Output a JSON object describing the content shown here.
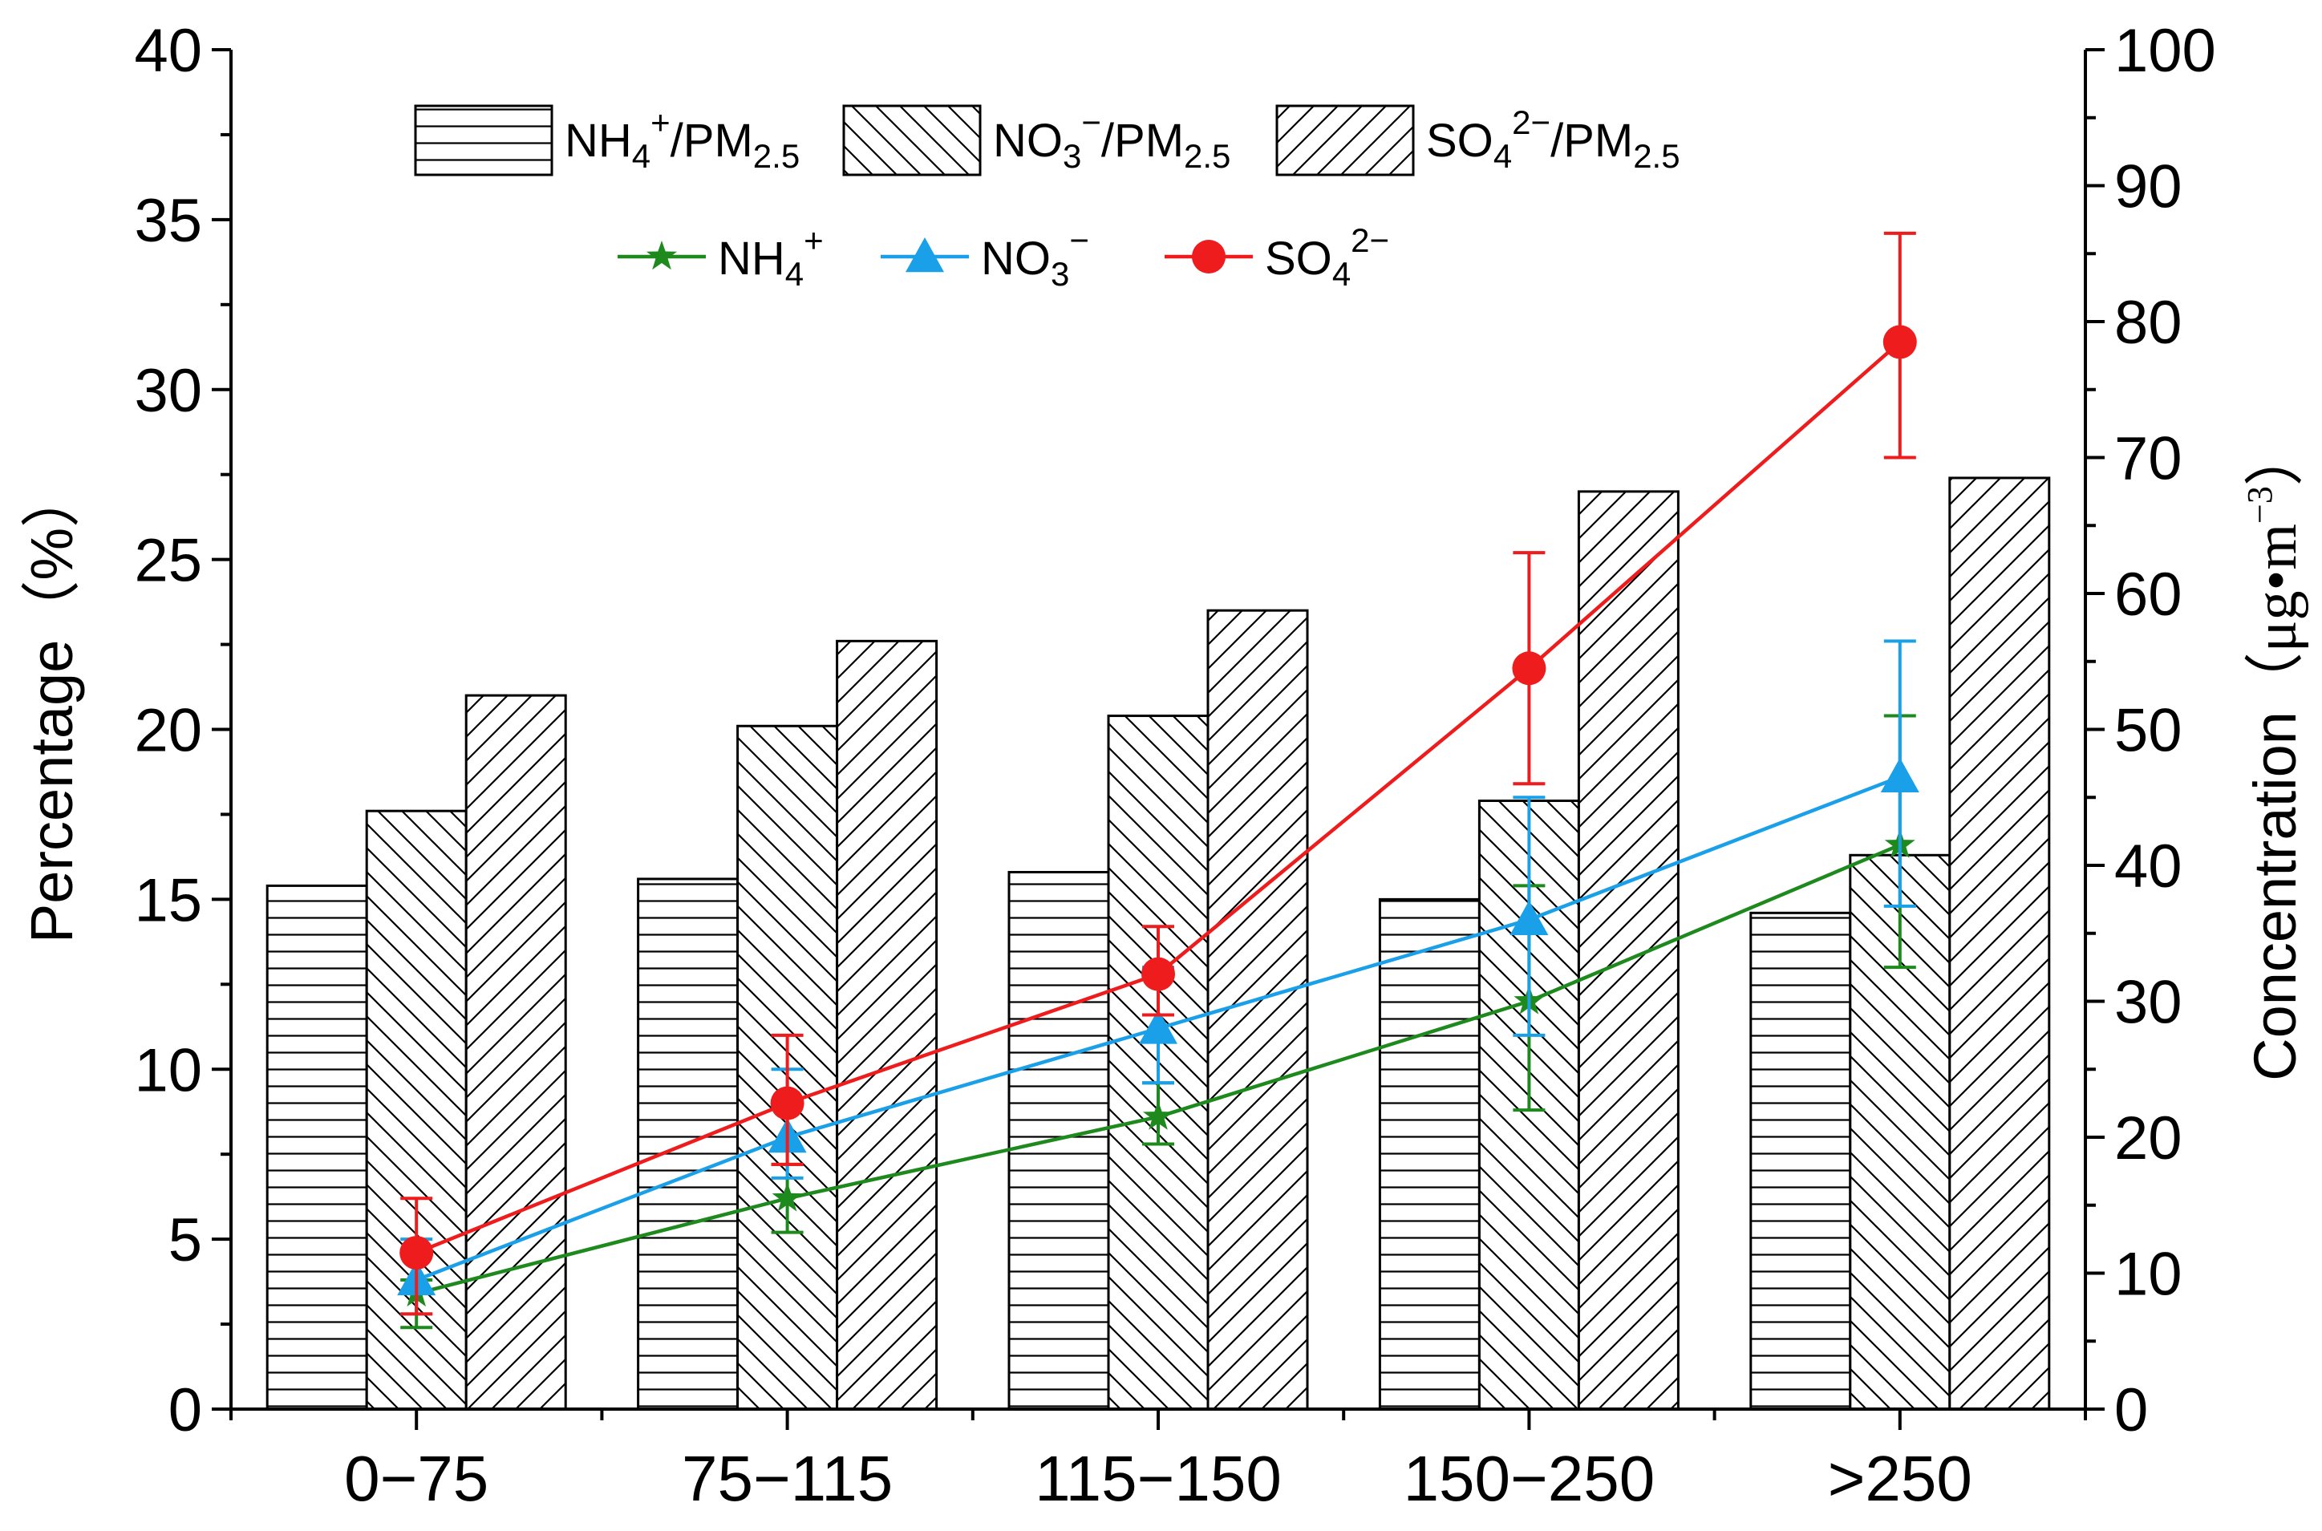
{
  "chart_data": {
    "type": "bar",
    "categories": [
      "0−75",
      "75−115",
      "115−150",
      "150−250",
      ">250"
    ],
    "ylabel_left": "Percentage（%）",
    "ylabel_right_main": "Concentration（",
    "ylabel_right_unit": "μg•m",
    "ylabel_right_exp": "−3",
    "ylabel_right_close": "）",
    "ylim_left": [
      0,
      40
    ],
    "ylim_right": [
      0,
      100
    ],
    "yticks_left": [
      "0",
      "5",
      "10",
      "15",
      "20",
      "25",
      "30",
      "35",
      "40"
    ],
    "yticks_right": [
      "0",
      "10",
      "20",
      "30",
      "40",
      "50",
      "60",
      "70",
      "80",
      "90",
      "100"
    ],
    "bar_series": [
      {
        "name": "NH4+/PM2.5",
        "legend_main": "NH",
        "legend_sub1": "4",
        "legend_sup": "+",
        "legend_tail": "/PM",
        "legend_sub2": "2.5",
        "pattern": "horizontal",
        "axis": "left",
        "values": [
          15.4,
          15.6,
          15.8,
          15.0,
          14.6
        ]
      },
      {
        "name": "NO3−/PM2.5",
        "legend_main": "NO",
        "legend_sub1": "3",
        "legend_sup": "−",
        "legend_tail": "/PM",
        "legend_sub2": "2.5",
        "pattern": "backslash",
        "axis": "left",
        "values": [
          17.6,
          20.1,
          20.4,
          17.9,
          16.3
        ]
      },
      {
        "name": "SO42−/PM2.5",
        "legend_main": "SO",
        "legend_sub1": "4",
        "legend_sup": "2−",
        "legend_tail": "/PM",
        "legend_sub2": "2.5",
        "pattern": "slash",
        "axis": "left",
        "values": [
          21.0,
          22.6,
          23.5,
          27.0,
          27.4
        ]
      }
    ],
    "line_series": [
      {
        "name": "NH4+",
        "legend_main": "NH",
        "legend_sub1": "4",
        "legend_sup": "+",
        "marker": "star",
        "color": "#1e8a1e",
        "axis": "right",
        "values": [
          8.5,
          15.5,
          21.5,
          30.0,
          41.5
        ],
        "err_low": [
          6.0,
          13.0,
          19.5,
          22.0,
          32.5
        ],
        "err_high": [
          9.5,
          18.0,
          24.0,
          38.5,
          51.0
        ]
      },
      {
        "name": "NO3−",
        "legend_main": "NO",
        "legend_sub1": "3",
        "legend_sup": "−",
        "marker": "triangle",
        "color": "#1aa0e8",
        "axis": "right",
        "values": [
          9.5,
          20.0,
          28.0,
          36.0,
          46.5
        ],
        "err_low": [
          7.0,
          17.0,
          24.0,
          27.5,
          37.0
        ],
        "err_high": [
          12.5,
          25.0,
          32.5,
          45.0,
          56.5
        ]
      },
      {
        "name": "SO42−",
        "legend_main": "SO",
        "legend_sub1": "4",
        "legend_sup": "2−",
        "marker": "circle",
        "color": "#ee1c1c",
        "axis": "right",
        "values": [
          11.5,
          22.5,
          32.0,
          54.5,
          78.5
        ],
        "err_low": [
          7.0,
          18.0,
          29.0,
          46.0,
          70.0
        ],
        "err_high": [
          15.5,
          27.5,
          35.5,
          63.0,
          86.5
        ]
      }
    ],
    "grid": false,
    "legend_position": "top-left"
  }
}
